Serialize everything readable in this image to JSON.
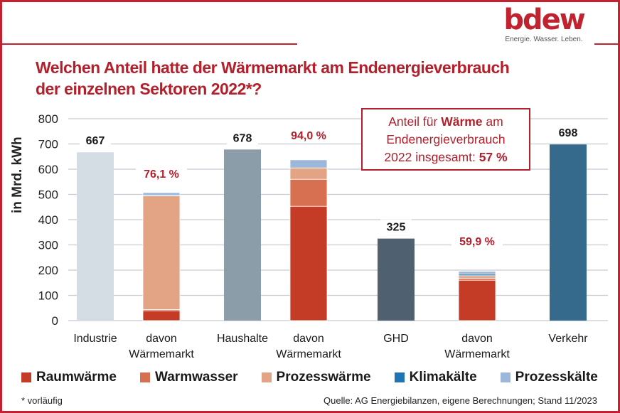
{
  "brand": {
    "logo_text": "bdew",
    "tagline": "Energie. Wasser. Leben.",
    "accent_color": "#c0232f"
  },
  "title_line1": "Welchen Anteil hatte der Wärmemarkt am Endenergieverbrauch",
  "title_line2": "der einzelnen Sektoren 2022*?",
  "note": {
    "part1": "Anteil für ",
    "bold1": "Wärme",
    "part2": " am",
    "line2": "Endenergieverbrauch",
    "line3": "2022 insgesamt: ",
    "bold3": "57 %"
  },
  "footnote": "* vorläufig",
  "source": "Quelle: AG Energiebilanzen, eigene Berechnungen; Stand 11/2023",
  "chart_data": {
    "type": "bar",
    "title": "Welchen Anteil hatte der Wärmemarkt am Endenergieverbrauch der einzelnen Sektoren 2022*?",
    "xlabel": "",
    "ylabel": "in Mrd. kWh",
    "ylim": [
      0,
      800
    ],
    "yticks": [
      0,
      100,
      200,
      300,
      400,
      500,
      600,
      700,
      800
    ],
    "grid": true,
    "legend_position": "bottom",
    "categories": [
      {
        "label1": "Industrie",
        "label2": ""
      },
      {
        "label1": "davon",
        "label2": "Wärmemarkt"
      },
      {
        "label1": "Haushalte",
        "label2": ""
      },
      {
        "label1": "davon",
        "label2": "Wärmemarkt"
      },
      {
        "label1": "GHD",
        "label2": ""
      },
      {
        "label1": "davon",
        "label2": "Wärmemarkt"
      },
      {
        "label1": "Verkehr",
        "label2": ""
      }
    ],
    "totals": [
      {
        "category_index": 0,
        "value": 667,
        "label": "667",
        "color": "#d5dde4"
      },
      {
        "category_index": 2,
        "value": 678,
        "label": "678",
        "color": "#8c9daa"
      },
      {
        "category_index": 4,
        "value": 325,
        "label": "325",
        "color": "#4f6170"
      },
      {
        "category_index": 6,
        "value": 698,
        "label": "698",
        "color": "#356a8c"
      }
    ],
    "series": [
      {
        "name": "Raumwärme",
        "color": "#c43b26",
        "values": [
          null,
          39,
          null,
          453,
          null,
          160,
          null
        ]
      },
      {
        "name": "Warmwasser",
        "color": "#d77050",
        "values": [
          null,
          5,
          null,
          107,
          null,
          8,
          null
        ]
      },
      {
        "name": "Prozesswärme",
        "color": "#e3a385",
        "values": [
          null,
          450,
          null,
          45,
          null,
          10,
          null
        ]
      },
      {
        "name": "Klimakälte",
        "color": "#1f74b4",
        "values": [
          null,
          3,
          null,
          0,
          null,
          6,
          null
        ]
      },
      {
        "name": "Prozesskälte",
        "color": "#9db7db",
        "values": [
          null,
          10,
          null,
          32,
          null,
          11,
          null
        ]
      }
    ],
    "share_labels": [
      {
        "category_index": 1,
        "label": "76,1 %"
      },
      {
        "category_index": 3,
        "label": "94,0 %"
      },
      {
        "category_index": 5,
        "label": "59,9 %"
      }
    ],
    "share_label_color": "#b3202c"
  }
}
